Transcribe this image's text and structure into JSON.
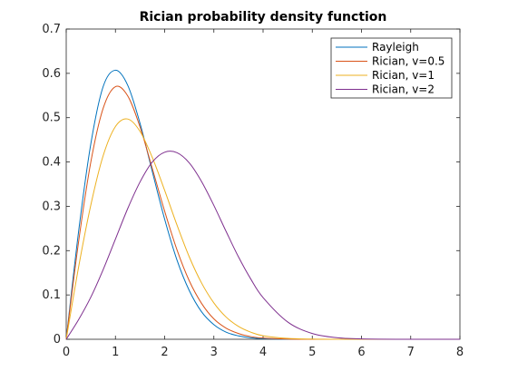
{
  "chart_data": {
    "type": "line",
    "title": "Rician probability density function",
    "xlabel": "",
    "ylabel": "",
    "xlim": [
      0,
      8
    ],
    "ylim": [
      0,
      0.7
    ],
    "xticks": [
      "0",
      "1",
      "2",
      "3",
      "4",
      "5",
      "6",
      "7",
      "8"
    ],
    "yticks": [
      "0",
      "0.1",
      "0.2",
      "0.3",
      "0.4",
      "0.5",
      "0.6",
      "0.7"
    ],
    "grid": false,
    "legend_position": "top-right",
    "x": [
      0,
      0.25,
      0.5,
      0.75,
      1,
      1.25,
      1.5,
      1.75,
      2,
      2.25,
      2.5,
      2.75,
      3,
      3.25,
      3.5,
      3.75,
      4,
      4.5,
      5,
      5.5,
      6,
      7,
      8
    ],
    "series": [
      {
        "name": "Rayleigh",
        "color": "#0072bd",
        "values": [
          0,
          0.242,
          0.441,
          0.57,
          0.607,
          0.573,
          0.487,
          0.378,
          0.271,
          0.179,
          0.11,
          0.062,
          0.033,
          0.016,
          0.0076,
          0.0033,
          0.0013,
          0.0002,
          0,
          0,
          0,
          0,
          0
        ]
      },
      {
        "name": "Rician, v=0.5",
        "color": "#d95319",
        "values": [
          0,
          0.219,
          0.4,
          0.521,
          0.57,
          0.549,
          0.479,
          0.385,
          0.289,
          0.202,
          0.132,
          0.081,
          0.046,
          0.025,
          0.013,
          0.006,
          0.0027,
          0.0005,
          0,
          0,
          0,
          0,
          0
        ]
      },
      {
        "name": "Rician, v=1",
        "color": "#edb120",
        "values": [
          0,
          0.162,
          0.303,
          0.414,
          0.48,
          0.497,
          0.469,
          0.41,
          0.336,
          0.258,
          0.186,
          0.127,
          0.082,
          0.05,
          0.029,
          0.016,
          0.008,
          0.002,
          0.0004,
          0,
          0,
          0,
          0
        ]
      },
      {
        "name": "Rician, v=2",
        "color": "#7e2f8e",
        "values": [
          0,
          0.044,
          0.095,
          0.157,
          0.226,
          0.295,
          0.355,
          0.4,
          0.422,
          0.421,
          0.398,
          0.356,
          0.302,
          0.243,
          0.186,
          0.136,
          0.094,
          0.039,
          0.013,
          0.0035,
          0.0008,
          0,
          0
        ]
      }
    ]
  }
}
